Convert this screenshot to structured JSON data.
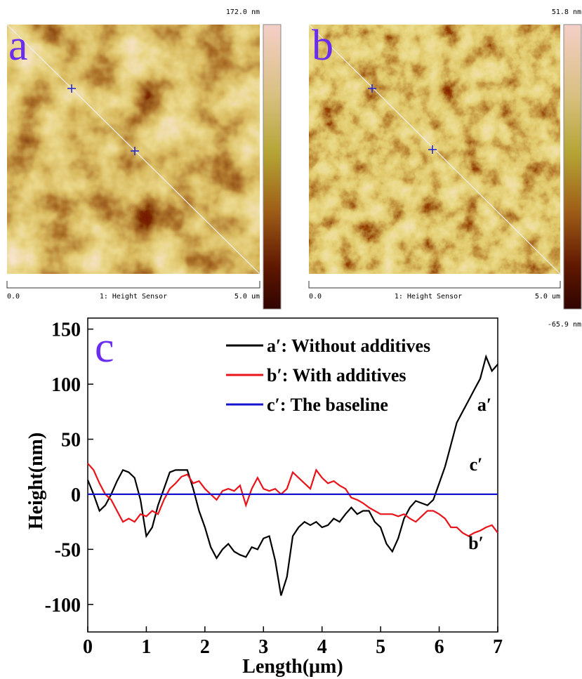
{
  "images": [
    {
      "label": "a",
      "scale_max": "172.0 nm",
      "scale_start": "0.0",
      "channel": "1: Height Sensor",
      "scale_end": "5.0 um"
    },
    {
      "label": "b",
      "scale_max": "51.8 nm",
      "scale_min": "-65.9 nm",
      "scale_start": "0.0",
      "channel": "1: Height Sensor",
      "scale_end": "5.0 um"
    }
  ],
  "chart_data": {
    "type": "line",
    "panel_label": "c",
    "x_label": "Length(μm)",
    "y_label": "Height(nm)",
    "xlim": [
      0,
      7
    ],
    "ylim": [
      -125,
      160
    ],
    "xticks": [
      0,
      1,
      2,
      3,
      4,
      5,
      6,
      7
    ],
    "yticks": [
      -100,
      -50,
      0,
      50,
      100,
      150
    ],
    "x": [
      0,
      0.1,
      0.2,
      0.3,
      0.4,
      0.5,
      0.6,
      0.7,
      0.8,
      0.9,
      1,
      1.1,
      1.2,
      1.3,
      1.4,
      1.5,
      1.6,
      1.7,
      1.8,
      1.9,
      2,
      2.1,
      2.2,
      2.3,
      2.4,
      2.5,
      2.6,
      2.7,
      2.8,
      2.9,
      3,
      3.1,
      3.2,
      3.3,
      3.4,
      3.5,
      3.6,
      3.7,
      3.8,
      3.9,
      4,
      4.1,
      4.2,
      4.3,
      4.4,
      4.5,
      4.6,
      4.7,
      4.8,
      4.9,
      5,
      5.1,
      5.2,
      5.3,
      5.4,
      5.5,
      5.6,
      5.7,
      5.8,
      5.9,
      6,
      6.1,
      6.2,
      6.3,
      6.4,
      6.5,
      6.6,
      6.7,
      6.8,
      6.9,
      7
    ],
    "series": [
      {
        "name": "a′: Without additives",
        "color": "#000000",
        "annotation": "a′",
        "values": [
          13,
          0,
          -15,
          -10,
          0,
          12,
          22,
          20,
          15,
          -5,
          -38,
          -30,
          -10,
          5,
          20,
          22,
          22,
          22,
          5,
          -15,
          -30,
          -48,
          -58,
          -50,
          -45,
          -52,
          -55,
          -57,
          -48,
          -50,
          -40,
          -38,
          -60,
          -92,
          -75,
          -38,
          -30,
          -25,
          -28,
          -25,
          -30,
          -28,
          -22,
          -25,
          -18,
          -12,
          -18,
          -15,
          -15,
          -25,
          -30,
          -45,
          -52,
          -40,
          -22,
          -12,
          -6,
          -8,
          -10,
          -5,
          10,
          25,
          45,
          65,
          75,
          85,
          95,
          105,
          125,
          112,
          118
        ]
      },
      {
        "name": "b′: With additives",
        "color": "#e8141b",
        "annotation": "b′",
        "values": [
          28,
          22,
          10,
          0,
          -5,
          -15,
          -25,
          -22,
          -25,
          -18,
          -20,
          -15,
          -18,
          -5,
          5,
          10,
          16,
          18,
          10,
          12,
          5,
          0,
          -5,
          3,
          5,
          3,
          8,
          -10,
          5,
          15,
          5,
          3,
          5,
          0,
          5,
          20,
          15,
          10,
          5,
          22,
          15,
          10,
          12,
          8,
          5,
          -3,
          -5,
          -8,
          -12,
          -15,
          -18,
          -18,
          -18,
          -20,
          -18,
          -22,
          -25,
          -20,
          -15,
          -15,
          -18,
          -22,
          -30,
          -30,
          -35,
          -38,
          -35,
          -33,
          -30,
          -28,
          -35
        ]
      },
      {
        "name": "c′:  The baseline",
        "color": "#1515d0",
        "annotation": "c′",
        "values": [
          0,
          0,
          0,
          0,
          0,
          0,
          0,
          0,
          0,
          0,
          0,
          0,
          0,
          0,
          0,
          0,
          0,
          0,
          0,
          0,
          0,
          0,
          0,
          0,
          0,
          0,
          0,
          0,
          0,
          0,
          0,
          0,
          0,
          0,
          0,
          0,
          0,
          0,
          0,
          0,
          0,
          0,
          0,
          0,
          0,
          0,
          0,
          0,
          0,
          0,
          0,
          0,
          0,
          0,
          0,
          0,
          0,
          0,
          0,
          0,
          0,
          0,
          0,
          0,
          0,
          0,
          0,
          0,
          0,
          0,
          0
        ]
      }
    ]
  }
}
